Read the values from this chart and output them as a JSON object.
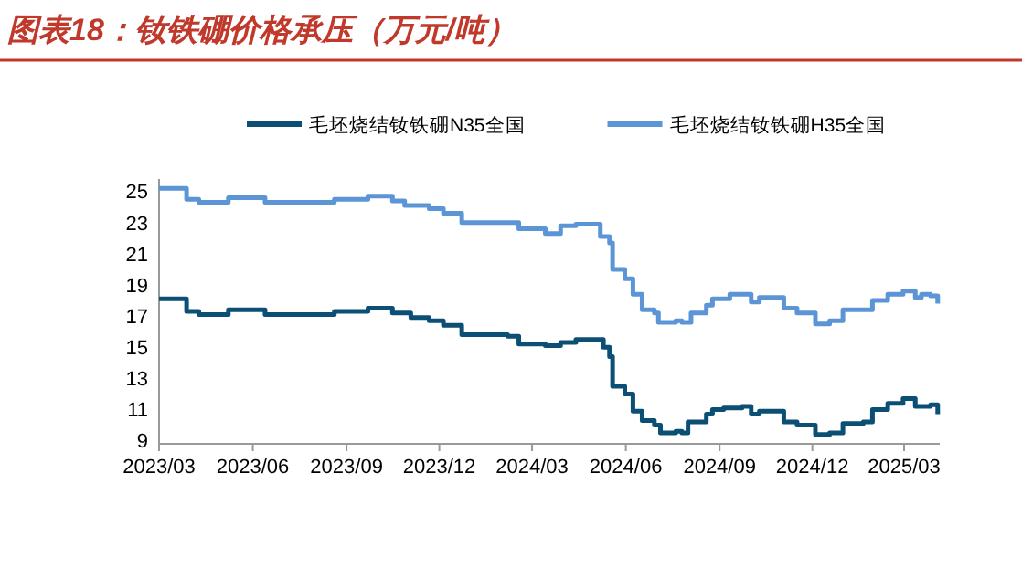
{
  "chart_data": {
    "type": "step",
    "title": "图表18：钕铁硼价格承压（万元/吨）",
    "legend": "top",
    "grid": false,
    "xlim": [
      "2023-03-01",
      "2025-04-05"
    ],
    "xticks": [
      {
        "value": "2023-03-01",
        "label": "2023/03"
      },
      {
        "value": "2023-06-01",
        "label": "2023/06"
      },
      {
        "value": "2023-09-01",
        "label": "2023/09"
      },
      {
        "value": "2023-12-01",
        "label": "2023/12"
      },
      {
        "value": "2024-03-01",
        "label": "2024/03"
      },
      {
        "value": "2024-06-01",
        "label": "2024/06"
      },
      {
        "value": "2024-09-01",
        "label": "2024/09"
      },
      {
        "value": "2024-12-01",
        "label": "2024/12"
      },
      {
        "value": "2025-03-01",
        "label": "2025/03"
      }
    ],
    "ylim": [
      9,
      26
    ],
    "yticks": [
      9,
      11,
      13,
      15,
      17,
      19,
      21,
      23,
      25
    ],
    "series": [
      {
        "name": "毛坯烧结钕铁硼N35全国",
        "color": "#0b4f75",
        "x": [
          "2023-03-01",
          "2023-03-28",
          "2023-04-09",
          "2023-05-08",
          "2023-06-13",
          "2023-08-20",
          "2023-09-22",
          "2023-10-16",
          "2023-11-03",
          "2023-11-21",
          "2023-12-05",
          "2023-12-23",
          "2024-02-06",
          "2024-02-17",
          "2024-03-14",
          "2024-03-29",
          "2024-04-13",
          "2024-05-01",
          "2024-05-10",
          "2024-05-16",
          "2024-05-19",
          "2024-05-31",
          "2024-06-08",
          "2024-06-17",
          "2024-06-29",
          "2024-07-05",
          "2024-07-20",
          "2024-07-26",
          "2024-08-01",
          "2024-08-19",
          "2024-08-25",
          "2024-09-05",
          "2024-09-23",
          "2024-10-02",
          "2024-10-10",
          "2024-10-22",
          "2024-11-03",
          "2024-11-16",
          "2024-12-04",
          "2024-12-18",
          "2024-12-31",
          "2025-01-20",
          "2025-01-29",
          "2025-02-13",
          "2025-02-28",
          "2025-03-12",
          "2025-03-27",
          "2025-04-03"
        ],
        "values": [
          18.3,
          17.5,
          17.3,
          17.6,
          17.3,
          17.5,
          17.7,
          17.4,
          17.1,
          16.9,
          16.6,
          16.0,
          15.9,
          15.4,
          15.3,
          15.5,
          15.7,
          15.7,
          15.2,
          14.6,
          12.7,
          12.2,
          11.1,
          10.5,
          10.2,
          9.7,
          9.8,
          9.7,
          10.4,
          10.9,
          11.2,
          11.3,
          11.4,
          10.9,
          11.1,
          11.1,
          10.4,
          10.2,
          9.6,
          9.7,
          10.3,
          10.4,
          11.2,
          11.6,
          11.9,
          11.4,
          11.5,
          10.9
        ]
      },
      {
        "name": "毛坯烧结钕铁硼H35全国",
        "color": "#5b95d6",
        "x": [
          "2023-03-01",
          "2023-03-28",
          "2023-04-09",
          "2023-05-08",
          "2023-06-13",
          "2023-08-20",
          "2023-09-22",
          "2023-10-16",
          "2023-10-28",
          "2023-11-21",
          "2023-12-05",
          "2023-12-23",
          "2024-01-21",
          "2024-02-17",
          "2024-03-14",
          "2024-03-29",
          "2024-04-13",
          "2024-05-01",
          "2024-05-07",
          "2024-05-16",
          "2024-05-19",
          "2024-05-31",
          "2024-06-08",
          "2024-06-17",
          "2024-06-29",
          "2024-07-03",
          "2024-07-20",
          "2024-07-26",
          "2024-08-04",
          "2024-08-19",
          "2024-08-25",
          "2024-09-05",
          "2024-09-11",
          "2024-09-23",
          "2024-10-02",
          "2024-10-10",
          "2024-10-22",
          "2024-11-03",
          "2024-11-16",
          "2024-12-04",
          "2024-12-18",
          "2024-12-31",
          "2025-01-20",
          "2025-01-29",
          "2025-02-13",
          "2025-02-28",
          "2025-03-12",
          "2025-03-18",
          "2025-03-27",
          "2025-04-03"
        ],
        "values": [
          25.4,
          24.7,
          24.5,
          24.8,
          24.5,
          24.7,
          24.9,
          24.6,
          24.3,
          24.1,
          23.8,
          23.2,
          23.2,
          22.8,
          22.5,
          23.0,
          23.1,
          23.1,
          22.3,
          21.9,
          20.2,
          19.6,
          18.6,
          17.6,
          17.4,
          16.8,
          16.9,
          16.8,
          17.4,
          17.9,
          18.3,
          18.3,
          18.6,
          18.6,
          18.1,
          18.4,
          18.4,
          17.7,
          17.4,
          16.7,
          16.9,
          17.6,
          17.6,
          18.2,
          18.6,
          18.8,
          18.4,
          18.6,
          18.5,
          18.0
        ]
      }
    ]
  }
}
